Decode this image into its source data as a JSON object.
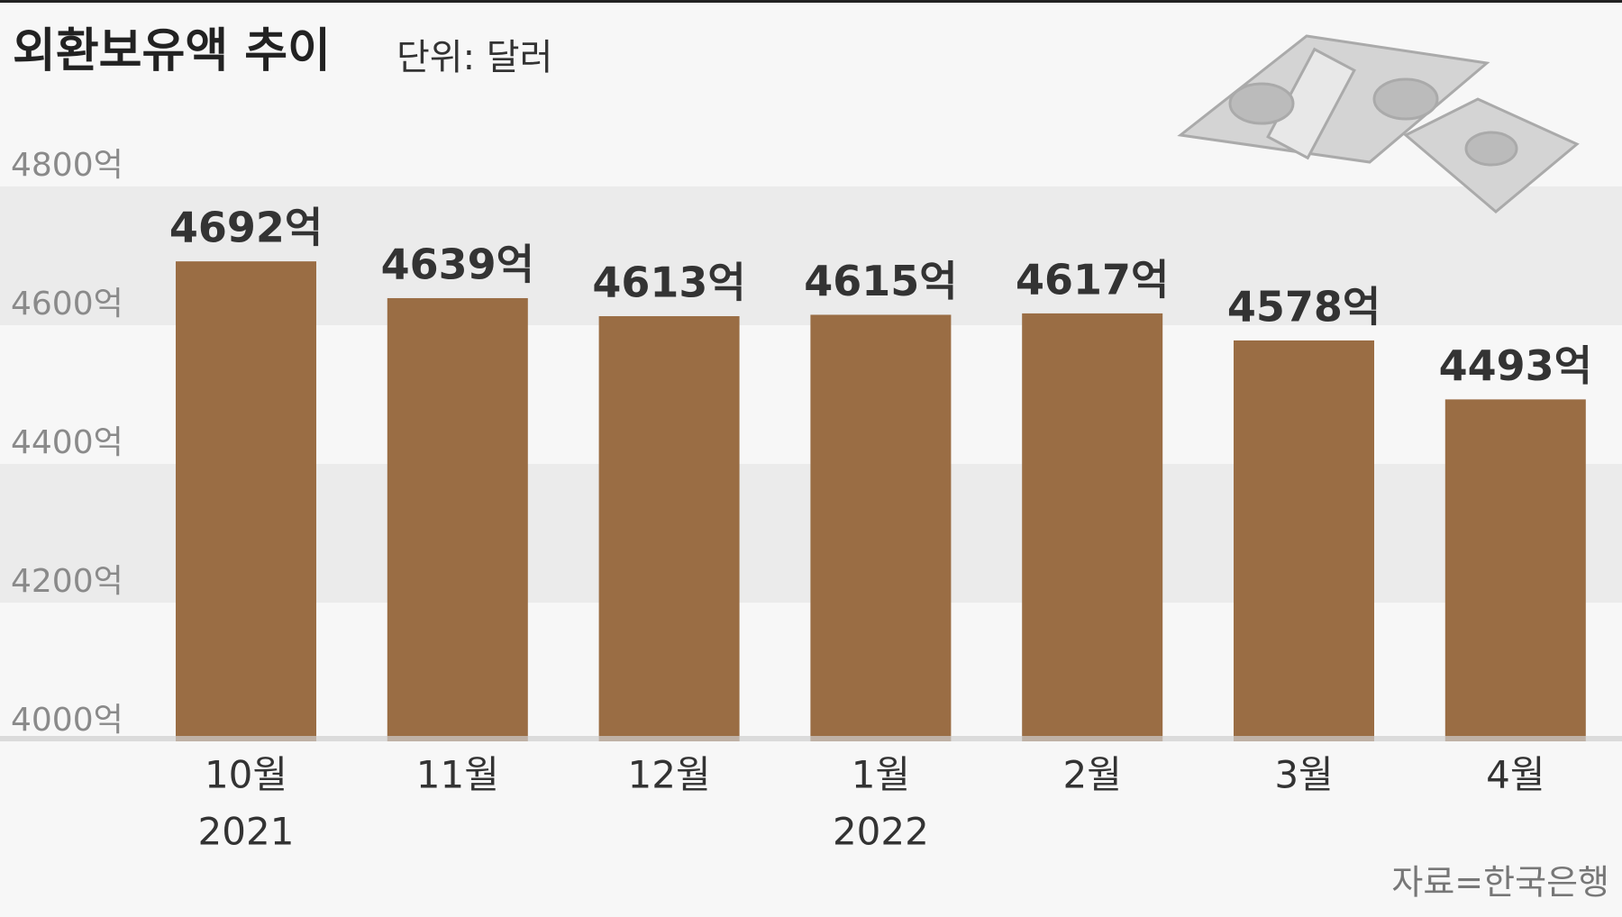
{
  "chart_data": {
    "type": "bar",
    "title": "외환보유액 추이",
    "subtitle": "단위: 달러",
    "source": "자료=한국은행",
    "categories": [
      "10월",
      "11월",
      "12월",
      "1월",
      "2월",
      "3월",
      "4월"
    ],
    "years": [
      "2021",
      null,
      null,
      "2022",
      null,
      null,
      null
    ],
    "values": [
      4692,
      4639,
      4613,
      4615,
      4617,
      4578,
      4493
    ],
    "value_labels": [
      "4692억",
      "4639억",
      "4613억",
      "4615억",
      "4617억",
      "4578억",
      "4493억"
    ],
    "color": "#9a6d44",
    "ylim": [
      4000,
      4800
    ],
    "yticks": [
      {
        "value": 4000,
        "label": "4000억"
      },
      {
        "value": 4200,
        "label": "4200억"
      },
      {
        "value": 4400,
        "label": "4400억"
      },
      {
        "value": 4600,
        "label": "4600억"
      },
      {
        "value": 4800,
        "label": "4800억"
      }
    ],
    "grid": "bands"
  }
}
